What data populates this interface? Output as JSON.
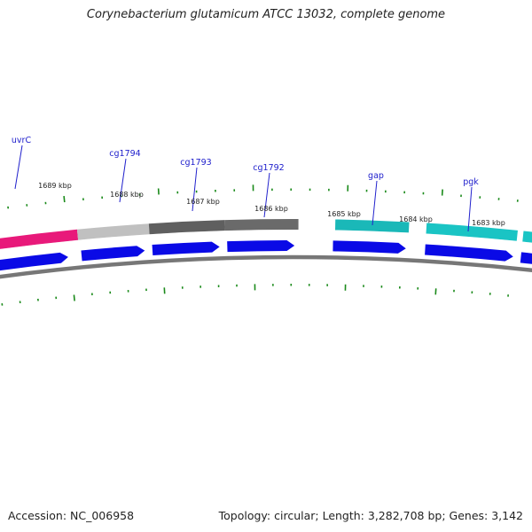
{
  "header": {
    "title": "Corynebacterium glutamicum ATCC 13032, complete genome"
  },
  "footer": {
    "accession": "Accession: NC_006958",
    "summary": "Topology: circular; Length: 3,282,708 bp; Genes: 3,142"
  },
  "colors": {
    "backbone": "#777777",
    "tick": "#1a8a1a",
    "cds": "#0a0ae6",
    "uvrC": "#e8197a",
    "cg1794": "#c0c0c0",
    "cg1793": "#5f5f5f",
    "cg1792": "#6a6a6a",
    "gap": "#1ab8b8",
    "pgk": "#1ac4c4",
    "label": "#2020cc"
  },
  "map": {
    "kbp_labels": [
      "1689 kbp",
      "1688 kbp",
      "1687 kbp",
      "1686 kbp",
      "1685 kbp",
      "1684 kbp",
      "1683 kbp"
    ],
    "genes": [
      {
        "name": "uvrC",
        "color_key": "uvrC"
      },
      {
        "name": "cg1794",
        "color_key": "cg1794"
      },
      {
        "name": "cg1793",
        "color_key": "cg1793"
      },
      {
        "name": "cg1792",
        "color_key": "cg1792"
      },
      {
        "name": "gap",
        "color_key": "gap"
      },
      {
        "name": "pgk",
        "color_key": "pgk"
      }
    ]
  }
}
